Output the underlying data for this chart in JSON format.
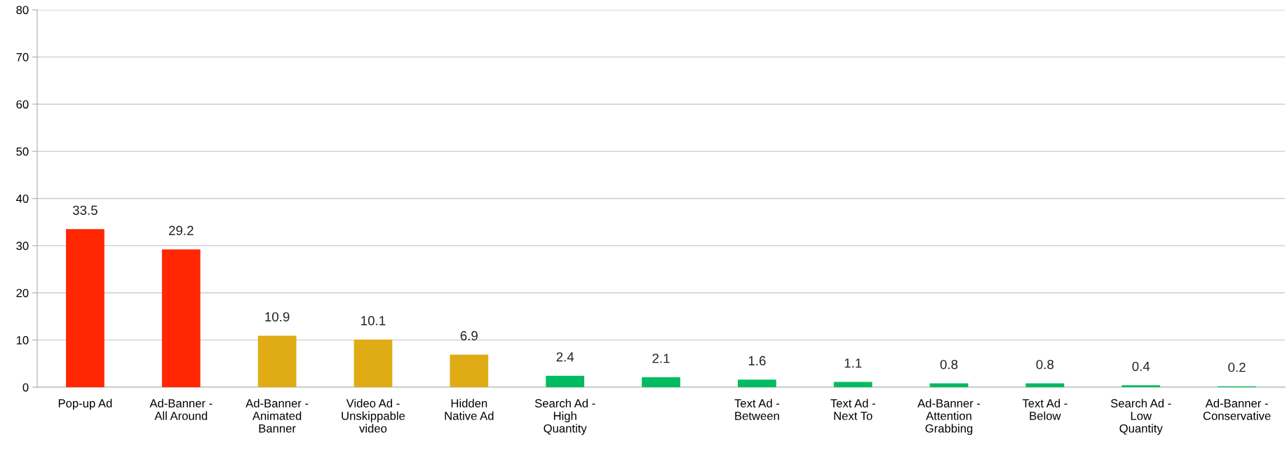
{
  "chart_data": {
    "type": "bar",
    "categories": [
      "Pop-up Ad",
      "Ad-Banner -\nAll Around",
      "Ad-Banner -\nAnimated\nBanner",
      "Video Ad -\nUnskippable\nvideo",
      "Hidden\nNative Ad",
      "Search Ad -\nHigh\nQuantity",
      null,
      "Text Ad -\nBetween",
      "Text Ad -\nNext To",
      "Ad-Banner -\nAttention\nGrabbing",
      "Text Ad -\nBelow",
      "Search Ad -\nLow\nQuantity",
      "Ad-Banner -\nConservative"
    ],
    "values": [
      33.5,
      29.2,
      10.9,
      10.1,
      6.9,
      2.4,
      2.1,
      1.6,
      1.1,
      0.8,
      0.8,
      0.4,
      0.2
    ],
    "colors": [
      "#ff2600",
      "#ff2600",
      "#e0ac16",
      "#e0ac16",
      "#e0ac16",
      "#00bb5f",
      "#00bb5f",
      "#00bb5f",
      "#00bb5f",
      "#00bb5f",
      "#00bb5f",
      "#00bb5f",
      "#00bb5f"
    ],
    "ylim": [
      0,
      80
    ],
    "yticks": [
      0,
      10,
      20,
      30,
      40,
      50,
      60,
      70,
      80
    ],
    "grid": "y",
    "data_labels": true
  }
}
